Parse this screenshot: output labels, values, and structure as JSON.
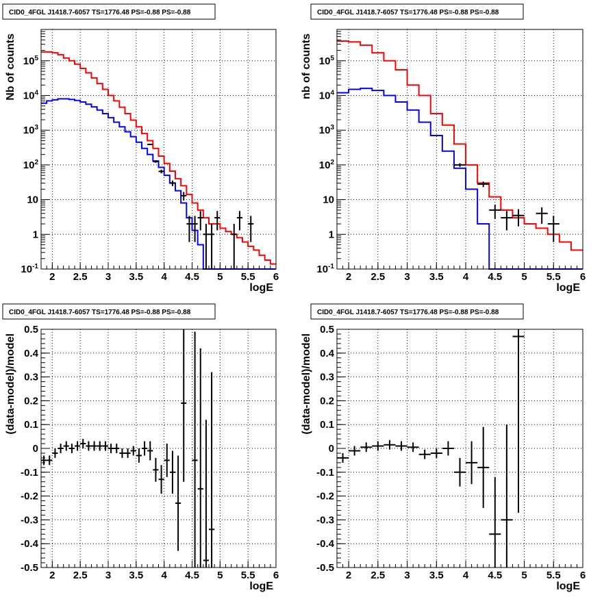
{
  "colors": {
    "data": "#000000",
    "model_total": "#ff0000",
    "model_source": "#0000ff",
    "grid": "#000000"
  },
  "chart_data": [
    {
      "type": "line",
      "title": "CID0_4FGL J1418.7-6057 TS=1776.48 PS=-0.88 PS=-0.88",
      "xlabel": "logE",
      "ylabel": "Nb of counts",
      "xlim": [
        1.8,
        6.0
      ],
      "ylim": [
        0.1,
        800000
      ],
      "yscale": "log",
      "grid": true,
      "x_ticks": [
        "2",
        "2.5",
        "3",
        "3.5",
        "4",
        "4.5",
        "5",
        "5.5",
        "6"
      ],
      "y_ticks": [
        "10^-1",
        "1",
        "10",
        "10^2",
        "10^3",
        "10^4",
        "10^5"
      ],
      "bin_edges": [
        1.8,
        1.9,
        2.0,
        2.1,
        2.2,
        2.3,
        2.4,
        2.5,
        2.6,
        2.7,
        2.8,
        2.9,
        3.0,
        3.1,
        3.2,
        3.3,
        3.4,
        3.5,
        3.6,
        3.7,
        3.8,
        3.9,
        4.0,
        4.1,
        4.2,
        4.3,
        4.4,
        4.5,
        4.6,
        4.7,
        4.8,
        4.9,
        5.0,
        5.1,
        5.2,
        5.3,
        5.4,
        5.5,
        5.6,
        5.7,
        5.8,
        5.9,
        6.0
      ],
      "series": [
        {
          "values": [
            180000,
            180000,
            170000,
            150000,
            120000,
            100000,
            80000,
            60000,
            45000,
            32000,
            22000,
            15000,
            10000,
            7000,
            4600,
            3000,
            1950,
            1250,
            800,
            500,
            300,
            180,
            110,
            66,
            40,
            25,
            14,
            8,
            5,
            3,
            2,
            2,
            1.5,
            1.2,
            1.0,
            0.8,
            0.6,
            0.45,
            0.35,
            0.25,
            0.18,
            0.14
          ]
        },
        {
          "values": [
            6000,
            7000,
            7500,
            8000,
            8000,
            7700,
            7200,
            6500,
            5600,
            4700,
            3800,
            3000,
            2300,
            1700,
            1250,
            900,
            650,
            450,
            300,
            200,
            130,
            85,
            50,
            30,
            18,
            8,
            3,
            1.3,
            0.5,
            0.1,
            0.1,
            0.1,
            0.1,
            0.1,
            0.1,
            0.1,
            0.1,
            0.1,
            0.1,
            0.1,
            0.1,
            0.1
          ]
        }
      ],
      "points": [
        {
          "x": 3.75,
          "y": 390,
          "yerr": 0
        },
        {
          "x": 3.85,
          "y": 125,
          "yerr": 10
        },
        {
          "x": 3.95,
          "y": 65,
          "yerr": 8
        },
        {
          "x": 4.15,
          "y": 30,
          "yerr": 5.5
        },
        {
          "x": 4.35,
          "y": 13,
          "yerr": 3.6
        },
        {
          "x": 4.45,
          "y": 2,
          "yerr": 1.4
        },
        {
          "x": 4.55,
          "y": 2,
          "yerr": 1.4
        },
        {
          "x": 4.65,
          "y": 3,
          "yerr": 1.7
        },
        {
          "x": 4.75,
          "y": 1,
          "yerr": 1
        },
        {
          "x": 4.85,
          "y": 1,
          "yerr": 1
        },
        {
          "x": 4.95,
          "y": 3,
          "yerr": 1.7
        },
        {
          "x": 5.25,
          "y": 1,
          "yerr": 1
        },
        {
          "x": 5.35,
          "y": 3,
          "yerr": 1.7
        },
        {
          "x": 5.55,
          "y": 2,
          "yerr": 1.4
        }
      ]
    },
    {
      "type": "line",
      "title": "CID0_4FGL J1418.7-6057 TS=1776.48 PS=-0.88 PS=-0.88",
      "xlabel": "logE",
      "ylabel": "nb of counts",
      "xlim": [
        1.8,
        6.0
      ],
      "ylim": [
        0.1,
        800000
      ],
      "yscale": "log",
      "grid": true,
      "x_ticks": [
        "2",
        "2.5",
        "3",
        "3.5",
        "4",
        "4.5",
        "5",
        "5.5",
        "6"
      ],
      "y_ticks": [
        "10^-1",
        "1",
        "10",
        "10^2",
        "10^3",
        "10^4",
        "10^5"
      ],
      "bin_edges": [
        1.8,
        2.0,
        2.2,
        2.4,
        2.6,
        2.8,
        3.0,
        3.2,
        3.4,
        3.6,
        3.8,
        4.0,
        4.2,
        4.4,
        4.6,
        4.8,
        5.0,
        5.2,
        5.4,
        5.6,
        5.8,
        6.0
      ],
      "series": [
        {
          "values": [
            370000,
            350000,
            280000,
            170000,
            100000,
            55000,
            20000,
            10000,
            3000,
            1400,
            400,
            100,
            30,
            12,
            5,
            3,
            2,
            1.5,
            1,
            0.6,
            0.35
          ]
        },
        {
          "values": [
            12000,
            15000,
            16000,
            14000,
            10000,
            6500,
            3800,
            1700,
            700,
            250,
            80,
            20,
            2,
            0.1,
            0.1,
            0.1,
            0.1,
            0.1,
            0.1,
            0.1,
            0.1
          ]
        }
      ],
      "points": [
        {
          "x": 3.9,
          "y": 100,
          "yerr": 12
        },
        {
          "x": 4.3,
          "y": 28,
          "yerr": 5
        },
        {
          "x": 4.5,
          "y": 5,
          "yerr": 2.2
        },
        {
          "x": 4.7,
          "y": 3,
          "yerr": 1.7
        },
        {
          "x": 4.9,
          "y": 3.5,
          "yerr": 1.8
        },
        {
          "x": 5.3,
          "y": 4,
          "yerr": 2
        },
        {
          "x": 5.5,
          "y": 2,
          "yerr": 1.4
        }
      ]
    },
    {
      "type": "scatter",
      "title": "CID0_4FGL J1418.7-6057 TS=1776.48 PS=-0.88 PS=-0.88",
      "xlabel": "logE",
      "ylabel": "(data-model)/model",
      "xlim": [
        1.8,
        6.0
      ],
      "ylim": [
        -0.5,
        0.5
      ],
      "yscale": "linear",
      "grid": true,
      "x_ticks": [
        "2",
        "2.5",
        "3",
        "3.5",
        "4",
        "4.5",
        "5",
        "5.5",
        "6"
      ],
      "y_ticks": [
        "-0.5",
        "-0.4",
        "-0.3",
        "-0.2",
        "-0.1",
        "0",
        "0.1",
        "0.2",
        "0.3",
        "0.4",
        "0.5"
      ],
      "xerr": 0.05,
      "points": [
        {
          "x": 1.85,
          "y": -0.05,
          "yerr": 0.02
        },
        {
          "x": 1.95,
          "y": -0.05,
          "yerr": 0.02
        },
        {
          "x": 2.05,
          "y": -0.02,
          "yerr": 0.02
        },
        {
          "x": 2.15,
          "y": 0.0,
          "yerr": 0.02
        },
        {
          "x": 2.25,
          "y": 0.01,
          "yerr": 0.02
        },
        {
          "x": 2.35,
          "y": 0.0,
          "yerr": 0.02
        },
        {
          "x": 2.45,
          "y": 0.01,
          "yerr": 0.02
        },
        {
          "x": 2.55,
          "y": 0.02,
          "yerr": 0.02
        },
        {
          "x": 2.65,
          "y": 0.01,
          "yerr": 0.02
        },
        {
          "x": 2.75,
          "y": 0.01,
          "yerr": 0.02
        },
        {
          "x": 2.85,
          "y": 0.01,
          "yerr": 0.02
        },
        {
          "x": 2.95,
          "y": 0.01,
          "yerr": 0.02
        },
        {
          "x": 3.05,
          "y": 0.0,
          "yerr": 0.02
        },
        {
          "x": 3.15,
          "y": 0.0,
          "yerr": 0.02
        },
        {
          "x": 3.25,
          "y": -0.02,
          "yerr": 0.02
        },
        {
          "x": 3.35,
          "y": -0.02,
          "yerr": 0.02
        },
        {
          "x": 3.45,
          "y": -0.01,
          "yerr": 0.02
        },
        {
          "x": 3.55,
          "y": -0.03,
          "yerr": 0.03
        },
        {
          "x": 3.65,
          "y": 0.0,
          "yerr": 0.03
        },
        {
          "x": 3.75,
          "y": -0.01,
          "yerr": 0.04
        },
        {
          "x": 3.85,
          "y": -0.09,
          "yerr": 0.05
        },
        {
          "x": 3.95,
          "y": -0.13,
          "yerr": 0.06
        },
        {
          "x": 4.05,
          "y": -0.05,
          "yerr": 0.07
        },
        {
          "x": 4.15,
          "y": -0.1,
          "yerr": 0.09
        },
        {
          "x": 4.25,
          "y": -0.23,
          "yerr": 0.2
        },
        {
          "x": 4.35,
          "y": 0.19,
          "yerr": 0.33
        },
        {
          "x": 4.55,
          "y": -0.05,
          "yerr": 0.54
        },
        {
          "x": 4.65,
          "y": -0.17,
          "yerr": 0.59
        },
        {
          "x": 4.75,
          "y": -0.47,
          "yerr": 0.59
        },
        {
          "x": 4.85,
          "y": -0.34,
          "yerr": 0.66
        }
      ]
    },
    {
      "type": "scatter",
      "title": "CID0_4FGL J1418.7-6057 TS=1776.48 PS=-0.88 PS=-0.88",
      "xlabel": "logE",
      "ylabel": "(data-model)/model",
      "xlim": [
        1.8,
        6.0
      ],
      "ylim": [
        -0.5,
        0.5
      ],
      "yscale": "linear",
      "grid": true,
      "x_ticks": [
        "2",
        "2.5",
        "3",
        "3.5",
        "4",
        "4.5",
        "5",
        "5.5",
        "6"
      ],
      "y_ticks": [
        "-0.5",
        "-0.4",
        "-0.3",
        "-0.2",
        "-0.1",
        "0",
        "0.1",
        "0.2",
        "0.3",
        "0.4",
        "0.5"
      ],
      "xerr": 0.1,
      "points": [
        {
          "x": 1.9,
          "y": -0.04,
          "yerr": 0.02
        },
        {
          "x": 2.1,
          "y": -0.01,
          "yerr": 0.02
        },
        {
          "x": 2.3,
          "y": 0.005,
          "yerr": 0.02
        },
        {
          "x": 2.5,
          "y": 0.01,
          "yerr": 0.02
        },
        {
          "x": 2.7,
          "y": 0.015,
          "yerr": 0.02
        },
        {
          "x": 2.9,
          "y": 0.01,
          "yerr": 0.02
        },
        {
          "x": 3.1,
          "y": 0.005,
          "yerr": 0.02
        },
        {
          "x": 3.3,
          "y": -0.025,
          "yerr": 0.02
        },
        {
          "x": 3.5,
          "y": -0.02,
          "yerr": 0.02
        },
        {
          "x": 3.7,
          "y": 0.0,
          "yerr": 0.03
        },
        {
          "x": 3.9,
          "y": -0.1,
          "yerr": 0.06
        },
        {
          "x": 4.1,
          "y": -0.06,
          "yerr": 0.09
        },
        {
          "x": 4.3,
          "y": -0.08,
          "yerr": 0.17
        },
        {
          "x": 4.5,
          "y": -0.36,
          "yerr": 0.24
        },
        {
          "x": 4.7,
          "y": -0.3,
          "yerr": 0.4
        },
        {
          "x": 4.9,
          "y": 0.47,
          "yerr": 0.74
        }
      ]
    }
  ]
}
